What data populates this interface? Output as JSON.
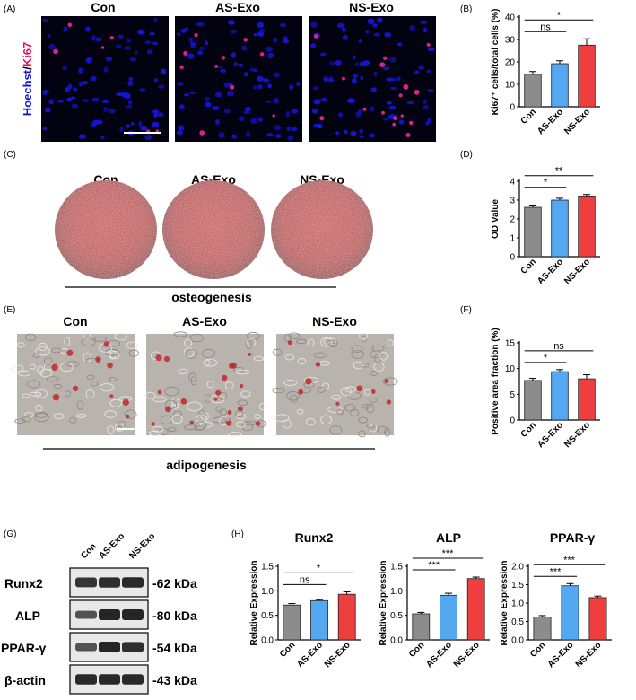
{
  "panels": {
    "A": "(A)",
    "B": "(B)",
    "C": "(C)",
    "D": "(D)",
    "E": "(E)",
    "F": "(F)",
    "G": "(G)",
    "H": "(H)"
  },
  "groups": [
    "Con",
    "AS-Exo",
    "NS-Exo"
  ],
  "panelA": {
    "stain_hoechst": "Hoechst",
    "stain_slash": "/",
    "stain_ki67": "Ki67"
  },
  "panelC": {
    "caption": "osteogenesis"
  },
  "panelE": {
    "caption": "adipogenesis"
  },
  "panelG": {
    "bands": [
      {
        "protein": "Runx2",
        "size": "-62 kDa"
      },
      {
        "protein": "ALP",
        "size": "-80 kDa"
      },
      {
        "protein": "PPAR-γ",
        "size": "-54 kDa"
      },
      {
        "protein": "β-actin",
        "size": "-43 kDa"
      }
    ]
  },
  "colors": {
    "con": "#8c8c8c",
    "as_exo": "#54a8f2",
    "ns_exo": "#ee3e3e",
    "nucleus": "#1515d8",
    "ki67": "#e0208a",
    "stain": "#c0282a"
  },
  "chart_data": [
    {
      "id": "B",
      "type": "bar",
      "categories": [
        "Con",
        "AS-Exo",
        "NS-Exo"
      ],
      "values": [
        14.5,
        19.2,
        27.5
      ],
      "errors": [
        1.2,
        1.3,
        2.8
      ],
      "ylabel": "Ki67⁺ cells/total cells (%)",
      "ylim": [
        0,
        40
      ],
      "yticks": [
        0,
        10,
        20,
        30,
        40
      ],
      "significance": [
        {
          "from": 0,
          "to": 1,
          "label": "ns"
        },
        {
          "from": 0,
          "to": 2,
          "label": "*"
        }
      ]
    },
    {
      "id": "D",
      "type": "bar",
      "categories": [
        "Con",
        "AS-Exo",
        "NS-Exo"
      ],
      "values": [
        2.62,
        3.0,
        3.22
      ],
      "errors": [
        0.12,
        0.1,
        0.08
      ],
      "ylabel": "OD Value",
      "ylim": [
        0,
        4
      ],
      "yticks": [
        0,
        1,
        2,
        3,
        4
      ],
      "significance": [
        {
          "from": 0,
          "to": 1,
          "label": "*"
        },
        {
          "from": 0,
          "to": 2,
          "label": "**"
        }
      ]
    },
    {
      "id": "F",
      "type": "bar",
      "categories": [
        "Con",
        "AS-Exo",
        "NS-Exo"
      ],
      "values": [
        7.7,
        9.4,
        8.0
      ],
      "errors": [
        0.4,
        0.4,
        0.8
      ],
      "ylabel": "Positive area fraction (%)",
      "ylim": [
        0,
        15
      ],
      "yticks": [
        0,
        5,
        10,
        15
      ],
      "significance": [
        {
          "from": 0,
          "to": 1,
          "label": "*"
        },
        {
          "from": 0,
          "to": 2,
          "label": "ns"
        }
      ]
    },
    {
      "id": "H1",
      "type": "bar",
      "title": "Runx2",
      "categories": [
        "Con",
        "AS-Exo",
        "NS-Exo"
      ],
      "values": [
        0.71,
        0.8,
        0.93
      ],
      "errors": [
        0.03,
        0.02,
        0.05
      ],
      "ylabel": "Relative  Expression",
      "ylim": [
        0,
        1.5
      ],
      "yticks": [
        "0.0",
        "0.5",
        "1.0",
        "1.5"
      ],
      "significance": [
        {
          "from": 0,
          "to": 1,
          "label": "ns"
        },
        {
          "from": 0,
          "to": 2,
          "label": "*"
        }
      ]
    },
    {
      "id": "H2",
      "type": "bar",
      "title": "ALP",
      "categories": [
        "Con",
        "AS-Exo",
        "NS-Exo"
      ],
      "values": [
        0.53,
        0.91,
        1.25
      ],
      "errors": [
        0.03,
        0.04,
        0.03
      ],
      "ylabel": "Relative  Expression",
      "ylim": [
        0,
        1.5
      ],
      "yticks": [
        "0.0",
        "0.5",
        "1.0",
        "1.5"
      ],
      "significance": [
        {
          "from": 0,
          "to": 1,
          "label": "***"
        },
        {
          "from": 0,
          "to": 2,
          "label": "***"
        }
      ]
    },
    {
      "id": "H3",
      "type": "bar",
      "title": "PPAR-γ",
      "categories": [
        "Con",
        "AS-Exo",
        "NS-Exo"
      ],
      "values": [
        0.62,
        1.47,
        1.15
      ],
      "errors": [
        0.04,
        0.06,
        0.04
      ],
      "ylabel": "Relative  Expression",
      "ylim": [
        0,
        2.0
      ],
      "yticks": [
        "0.0",
        "0.5",
        "1.0",
        "1.5",
        "2.0"
      ],
      "significance": [
        {
          "from": 0,
          "to": 1,
          "label": "***"
        },
        {
          "from": 0,
          "to": 2,
          "label": "***"
        }
      ]
    }
  ]
}
